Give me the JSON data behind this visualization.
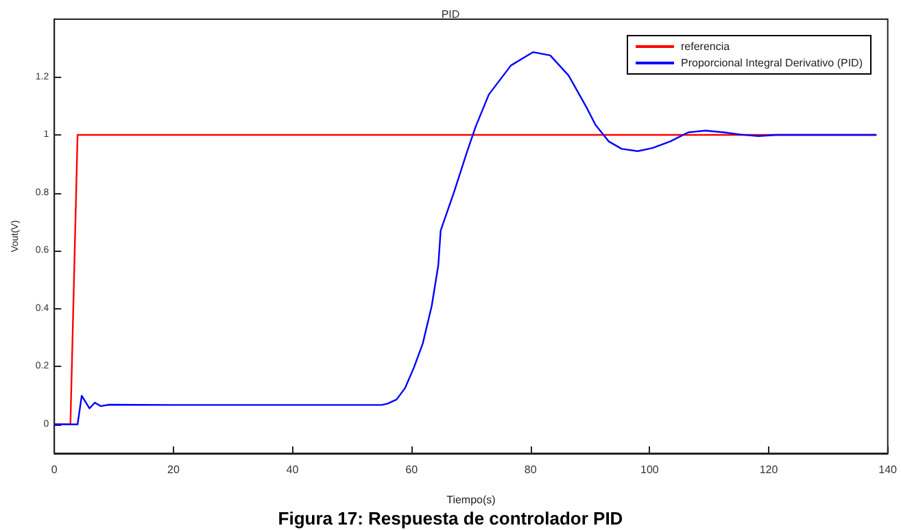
{
  "chart_data": {
    "type": "line",
    "title": "PID",
    "xlabel": "Tiempo(s)",
    "ylabel": "Vout(V)",
    "annotations": [
      "Figura 17: Respuesta de controlador PID"
    ],
    "xlim": [
      0,
      140
    ],
    "xticks": [
      0,
      20,
      40,
      60,
      80,
      100,
      120,
      140
    ],
    "ylim": [
      -0.1,
      1.4
    ],
    "yticks": [
      0,
      0.2,
      0.4,
      0.6,
      0.8,
      1,
      1.2
    ],
    "grid": false,
    "legend": "top right",
    "marker": "none",
    "line_style": "solid",
    "series": [
      {
        "name": "referencia",
        "color": "#ff0000",
        "x": [
          0,
          2.7,
          3.9,
          138
        ],
        "values": [
          0,
          0,
          1,
          1
        ]
      },
      {
        "name": "Proporcional Integral Derivativo (PID)",
        "color": "#0000ff",
        "x": [
          0,
          3.9,
          4.6,
          5.9,
          6.8,
          7.8,
          9.2,
          20,
          40,
          55,
          56,
          57.5,
          58.9,
          60.4,
          61.9,
          63.4,
          64.5,
          64.9,
          67.1,
          69.3,
          70.8,
          73,
          76.7,
          80.4,
          83.3,
          86.4,
          89.4,
          90.9,
          93.1,
          95.3,
          98,
          100.5,
          103.5,
          106.5,
          109.4,
          112.4,
          115.4,
          118.3,
          121.3,
          123.5,
          138
        ],
        "values": [
          0,
          0,
          0.099,
          0.055,
          0.075,
          0.063,
          0.068,
          0.067,
          0.067,
          0.067,
          0.072,
          0.086,
          0.125,
          0.196,
          0.28,
          0.41,
          0.55,
          0.67,
          0.8,
          0.94,
          1.03,
          1.14,
          1.24,
          1.286,
          1.275,
          1.205,
          1.095,
          1.035,
          0.978,
          0.952,
          0.944,
          0.955,
          0.978,
          1.009,
          1.015,
          1.009,
          1.001,
          0.996,
          1,
          1,
          1
        ]
      }
    ]
  }
}
